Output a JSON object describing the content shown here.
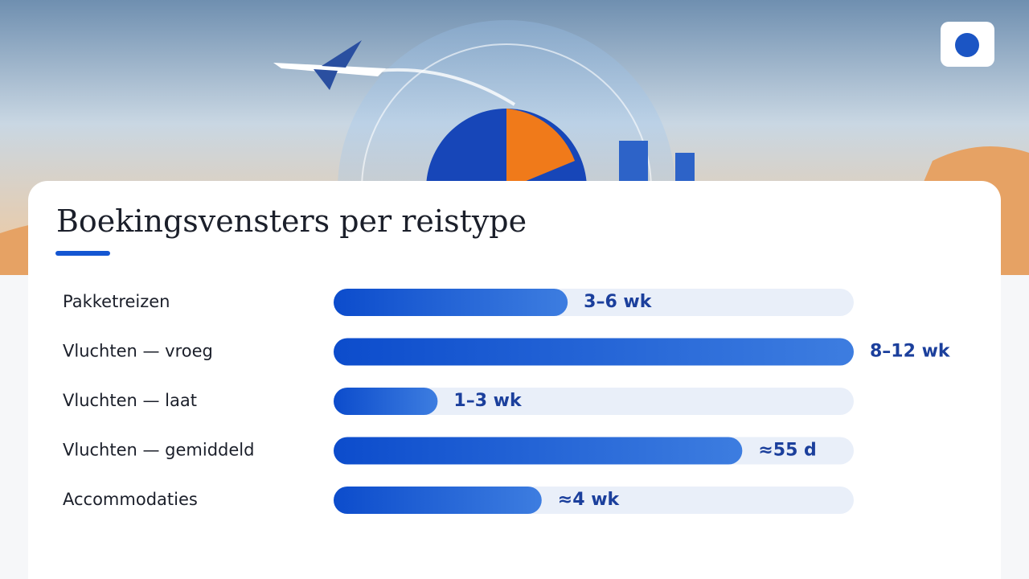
{
  "chart_data": {
    "type": "bar",
    "orientation": "horizontal",
    "title": "Boekingsvensters per reistype",
    "categories": [
      "Pakketreizen",
      "Vluchten — vroeg",
      "Vluchten — laat",
      "Vluchten — gemiddeld",
      "Accommodaties"
    ],
    "values": [
      31.5,
      70,
      14,
      55,
      28
    ],
    "value_labels": [
      "3–6 wk",
      "8–12 wk",
      "1–3 wk",
      "≈55 d",
      "≈4 wk"
    ],
    "xlim": [
      0,
      70
    ],
    "color": "#1456d2"
  }
}
